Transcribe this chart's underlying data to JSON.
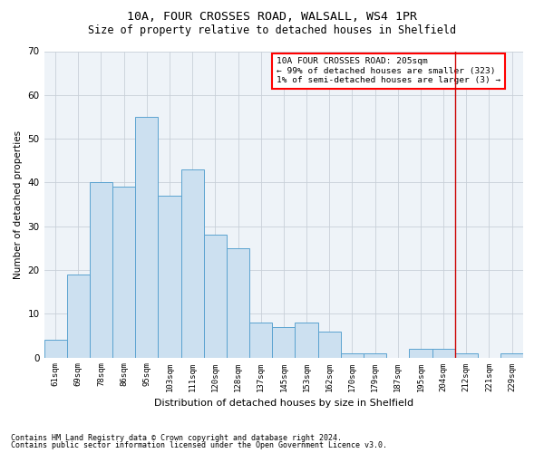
{
  "title1": "10A, FOUR CROSSES ROAD, WALSALL, WS4 1PR",
  "title2": "Size of property relative to detached houses in Shelfield",
  "xlabel": "Distribution of detached houses by size in Shelfield",
  "ylabel": "Number of detached properties",
  "categories": [
    "61sqm",
    "69sqm",
    "78sqm",
    "86sqm",
    "95sqm",
    "103sqm",
    "111sqm",
    "120sqm",
    "128sqm",
    "137sqm",
    "145sqm",
    "153sqm",
    "162sqm",
    "170sqm",
    "179sqm",
    "187sqm",
    "195sqm",
    "204sqm",
    "212sqm",
    "221sqm",
    "229sqm"
  ],
  "values": [
    4,
    19,
    40,
    39,
    55,
    37,
    43,
    28,
    25,
    8,
    7,
    8,
    6,
    1,
    1,
    0,
    2,
    2,
    1,
    0,
    1
  ],
  "bar_color": "#cce0f0",
  "bar_edge_color": "#5ba3d0",
  "vline_color": "#cc0000",
  "vline_x": 17.5,
  "ylim": [
    0,
    70
  ],
  "yticks": [
    0,
    10,
    20,
    30,
    40,
    50,
    60,
    70
  ],
  "legend_title": "10A FOUR CROSSES ROAD: 205sqm",
  "legend_line1": "← 99% of detached houses are smaller (323)",
  "legend_line2": "1% of semi-detached houses are larger (3) →",
  "footnote1": "Contains HM Land Registry data © Crown copyright and database right 2024.",
  "footnote2": "Contains public sector information licensed under the Open Government Licence v3.0.",
  "bg_color": "#ffffff",
  "plot_bg_color": "#eef3f8",
  "grid_color": "#c8d0d8"
}
